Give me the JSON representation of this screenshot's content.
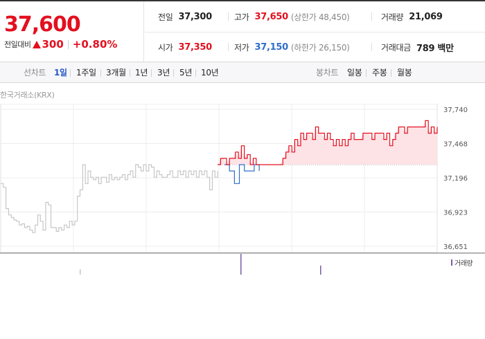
{
  "quote": {
    "current_price": "37,600",
    "change_label": "전일대비",
    "change_value": "300",
    "change_rate": "+0.80%",
    "up_color": "#e3101f",
    "down_color": "#2f6ecb",
    "stats": {
      "prev_close": {
        "label": "전일",
        "value": "37,300"
      },
      "high": {
        "label": "고가",
        "value": "37,650",
        "sub": "(상한가 48,450)"
      },
      "volume": {
        "label": "거래량",
        "value": "21,069"
      },
      "open": {
        "label": "시가",
        "value": "37,350"
      },
      "low": {
        "label": "저가",
        "value": "37,150",
        "sub": "(하한가 26,150)"
      },
      "trade_value": {
        "label": "거래대금",
        "value": "789 백만"
      }
    }
  },
  "toolbar": {
    "line_label": "선차트",
    "periods": [
      "1일",
      "1주일",
      "3개월",
      "1년",
      "3년",
      "5년",
      "10년"
    ],
    "selected_period": "1일",
    "candle_label": "봉차트",
    "candle_periods": [
      "일봉",
      "주봉",
      "월봉"
    ]
  },
  "chart": {
    "market_label": "한국거래소(KRX)",
    "volume_legend": "거래량",
    "volume_color": "#7b5aa6",
    "chart_data": {
      "type": "line",
      "title": "",
      "ylim": [
        36651,
        37740
      ],
      "y_ticks": [
        "37,740",
        "37,468",
        "37,196",
        "36,923",
        "36,651"
      ],
      "reference_price": 37300,
      "grid": true,
      "series": [
        {
          "segment": "previous-session",
          "color": "#c6c6c6",
          "values": [
            37150,
            37120,
            36950,
            36900,
            36880,
            36860,
            36850,
            36820,
            36830,
            36800,
            36810,
            36780,
            36760,
            36820,
            36900,
            36850,
            36780,
            37000,
            36980,
            36800,
            36800,
            36770,
            36800,
            36780,
            36820,
            36800,
            36850,
            36820,
            36850,
            37050,
            37100,
            37300,
            37150,
            37250,
            37200,
            37180,
            37200,
            37150,
            37200,
            37200,
            37160,
            37220,
            37180,
            37200,
            37180,
            37200,
            37220,
            37180,
            37220,
            37250,
            37200,
            37300,
            37280,
            37250,
            37300,
            37250,
            37300,
            37280,
            37200,
            37250,
            37220,
            37200,
            37200,
            37220,
            37250,
            37200,
            37200,
            37250,
            37220,
            37250,
            37200,
            37250,
            37220,
            37250,
            37200,
            37250,
            37220,
            37250,
            37200,
            37100,
            37250,
            37200,
            37250
          ]
        },
        {
          "segment": "today-down",
          "color": "#2f6ecb",
          "values": [
            37300,
            37250,
            37150,
            37300,
            37250,
            37250,
            37300,
            37250
          ]
        },
        {
          "segment": "today-up",
          "color": "#e3101f",
          "values": [
            37300,
            37350,
            37350,
            37300,
            37350,
            37350,
            37400,
            37350,
            37450,
            37350,
            37380,
            37300,
            37350,
            37300,
            37300,
            37300,
            37300,
            37300,
            37300,
            37300,
            37300,
            37300,
            37350,
            37400,
            37450,
            37400,
            37500,
            37450,
            37550,
            37500,
            37550,
            37550,
            37500,
            37600,
            37550,
            37550,
            37500,
            37550,
            37500,
            37450,
            37500,
            37450,
            37500,
            37450,
            37500,
            37550,
            37500,
            37500,
            37500,
            37550,
            37550,
            37550,
            37500,
            37550,
            37550,
            37550,
            37500,
            37550,
            37450,
            37500,
            37550,
            37600,
            37600,
            37550,
            37600,
            37600,
            37600,
            37600,
            37600,
            37600,
            37650,
            37550,
            37600,
            37550,
            37600
          ]
        }
      ],
      "volume_bars": [
        {
          "x_index": 29,
          "value": 0.15
        },
        {
          "x_index": 87,
          "value": 1.0
        },
        {
          "x_index": 116,
          "value": 0.35
        }
      ]
    }
  }
}
